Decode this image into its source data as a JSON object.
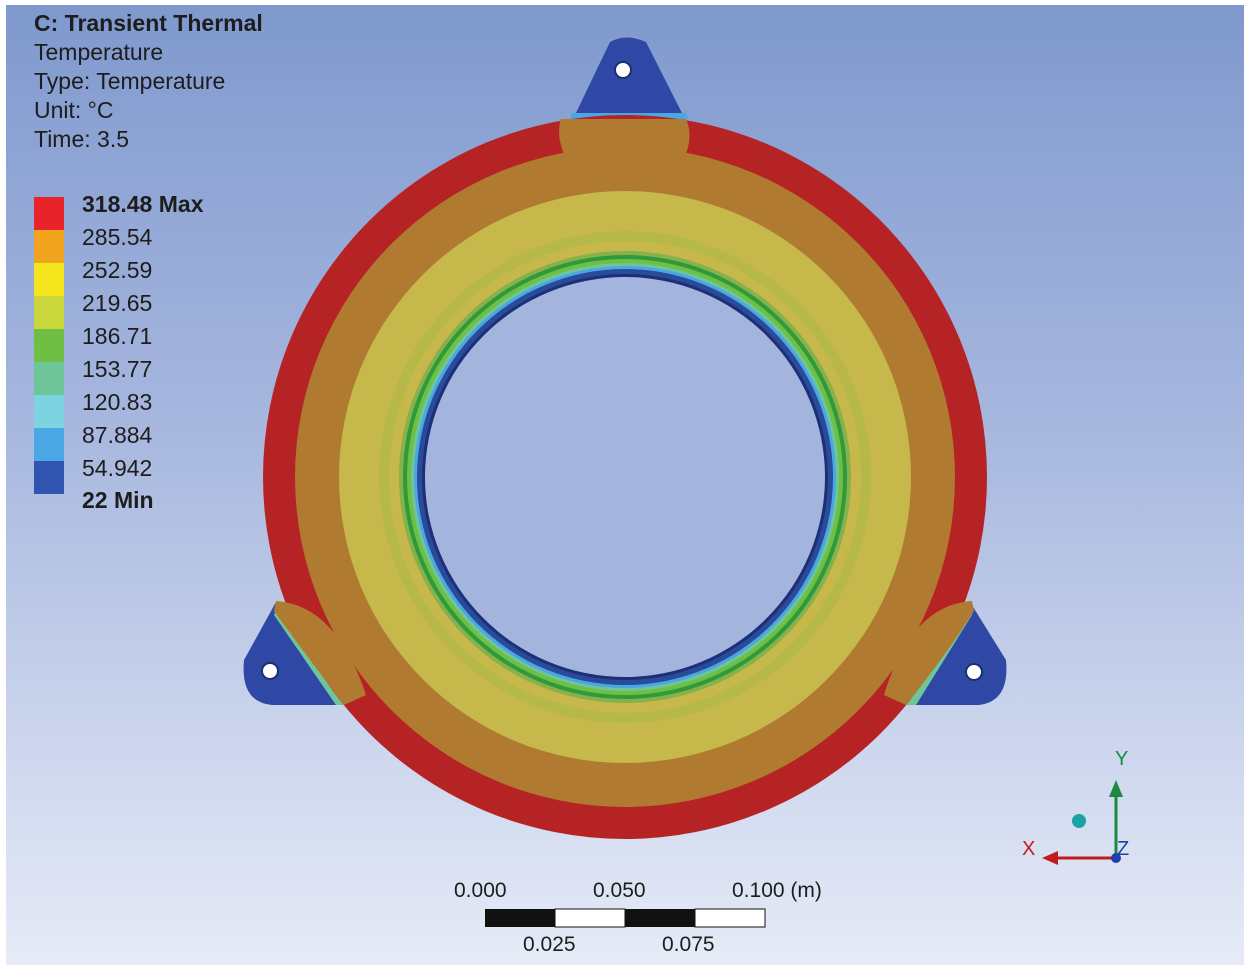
{
  "analysis": {
    "title": "C: Transient Thermal",
    "result": "Temperature",
    "type": "Type: Temperature",
    "unit": "Unit: °C",
    "time": "Time: 3.5"
  },
  "legend": {
    "labels": [
      "318.48 Max",
      "285.54",
      "252.59",
      "219.65",
      "186.71",
      "153.77",
      "120.83",
      "87.884",
      "54.942",
      "22 Min"
    ],
    "colors": [
      "#e8232a",
      "#f0a31c",
      "#f5e51d",
      "#c9d63c",
      "#6fbf44",
      "#6ec59a",
      "#7dd3e0",
      "#4aa7e3",
      "#2f55b0"
    ]
  },
  "scale": {
    "top_labels": [
      "0.000",
      "0.050",
      "0.100 (m)"
    ],
    "bottom_labels": [
      "0.025",
      "0.075"
    ]
  },
  "triad": {
    "x": "X",
    "y": "Y",
    "z": "Z"
  },
  "colors": {
    "ring_outer": "#b52325",
    "ring_brown": "#b07a30",
    "ring_olive": "#c6b84a",
    "ring_green": "#86b14c",
    "ring_inner_blue": "#2a4a9a",
    "lug_blue": "#2f48a6"
  }
}
